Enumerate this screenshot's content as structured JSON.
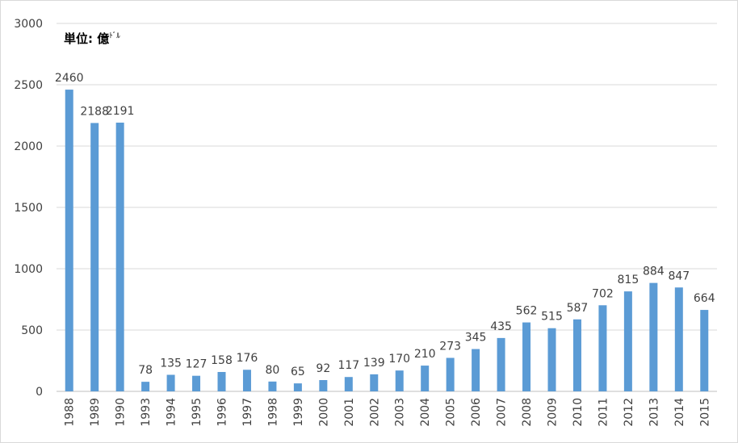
{
  "unit_label": {
    "main": "単位: 億",
    "suffix": "ﾄﾞﾙ"
  },
  "chart_data": {
    "type": "bar",
    "categories": [
      "1988",
      "1989",
      "1990",
      "1993",
      "1994",
      "1995",
      "1996",
      "1997",
      "1998",
      "1999",
      "2000",
      "2001",
      "2002",
      "2003",
      "2004",
      "2005",
      "2006",
      "2007",
      "2008",
      "2009",
      "2010",
      "2011",
      "2012",
      "2013",
      "2014",
      "2015"
    ],
    "values": [
      2460,
      2188,
      2191,
      78,
      135,
      127,
      158,
      176,
      80,
      65,
      92,
      117,
      139,
      170,
      210,
      273,
      345,
      435,
      562,
      515,
      587,
      702,
      815,
      884,
      847,
      664
    ],
    "title": "",
    "xlabel": "",
    "ylabel": "",
    "ylim": [
      0,
      3000
    ],
    "yticks": [
      0,
      500,
      1000,
      1500,
      2000,
      2500,
      3000
    ],
    "grid": true,
    "data_labels": true,
    "colors": {
      "bar": "#5b9bd5",
      "grid": "#d9d9d9",
      "text": "#404040",
      "axis": "#bfbfbf"
    }
  }
}
